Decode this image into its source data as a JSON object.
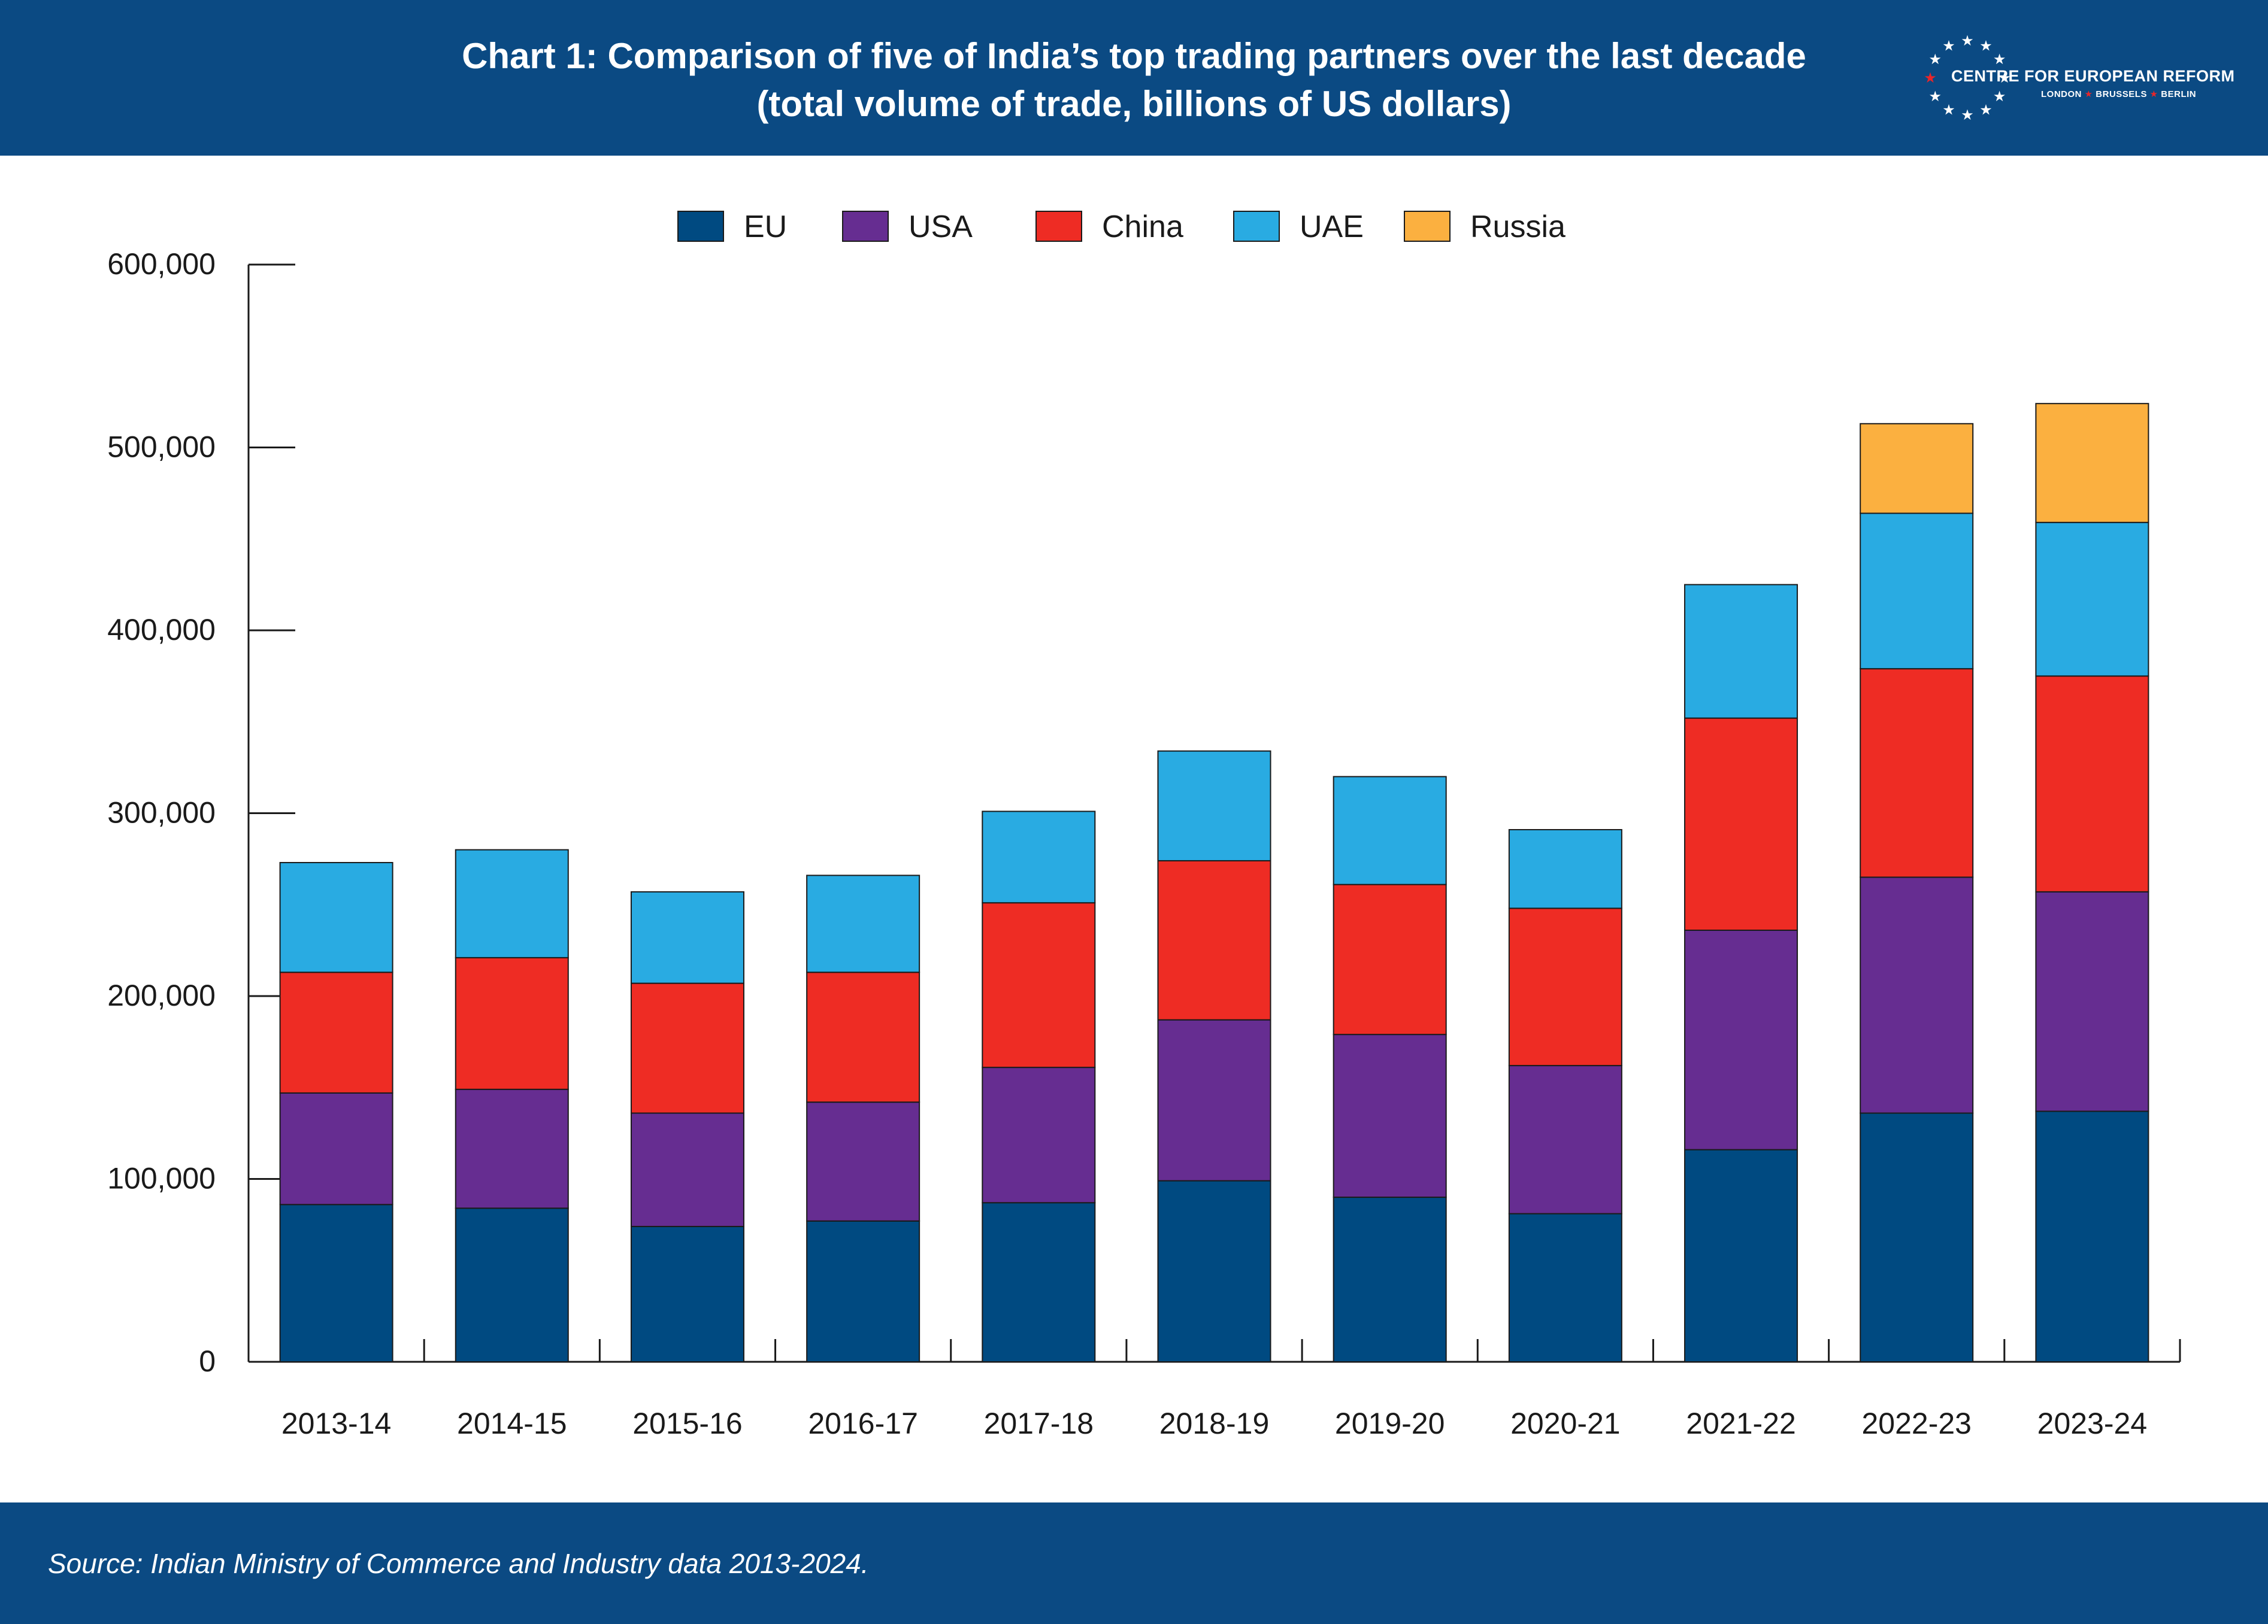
{
  "header": {
    "title_line1": "Chart 1: Comparison of five of India’s top trading partners over the last decade",
    "title_line2": "(total volume of trade, billions of US dollars)",
    "logo_name": "CENTRE FOR EUROPEAN REFORM",
    "logo_city1": "LONDON",
    "logo_city2": "BRUSSELS",
    "logo_city3": "BERLIN",
    "background": "#0b4a83"
  },
  "footer": {
    "source": "Source: Indian Ministry of Commerce and Industry data 2013-2024."
  },
  "chart_data": {
    "type": "bar",
    "stacked": true,
    "title": "Chart 1: Comparison of five of India’s top trading partners over the last decade",
    "subtitle": "(total volume of trade, billions of US dollars)",
    "categories": [
      "2013-14",
      "2014-15",
      "2015-16",
      "2016-17",
      "2017-18",
      "2018-19",
      "2019-20",
      "2020-21",
      "2021-22",
      "2022-23",
      "2023-24"
    ],
    "series": [
      {
        "name": "EU",
        "color": "#004a81",
        "values": [
          86000,
          84000,
          74000,
          77000,
          87000,
          99000,
          90000,
          81000,
          116000,
          136000,
          137000
        ]
      },
      {
        "name": "USA",
        "color": "#662d91",
        "values": [
          61000,
          65000,
          62000,
          65000,
          74000,
          88000,
          89000,
          81000,
          120000,
          129000,
          120000
        ]
      },
      {
        "name": "China",
        "color": "#ee2c24",
        "values": [
          66000,
          72000,
          71000,
          71000,
          90000,
          87000,
          82000,
          86000,
          116000,
          114000,
          118000
        ]
      },
      {
        "name": "UAE",
        "color": "#29abe2",
        "values": [
          60000,
          59000,
          50000,
          53000,
          50000,
          60000,
          59000,
          43000,
          73000,
          85000,
          84000
        ]
      },
      {
        "name": "Russia",
        "color": "#fbb040",
        "values": [
          0,
          0,
          0,
          0,
          0,
          0,
          0,
          0,
          0,
          49000,
          65000
        ]
      }
    ],
    "yticks": [
      "0",
      "100,000",
      "200,000",
      "300,000",
      "400,000",
      "500,000",
      "600,000"
    ],
    "ylim": [
      0,
      600000
    ],
    "xlabel": "",
    "ylabel": "",
    "legend_position": "top-center",
    "grid": false
  }
}
